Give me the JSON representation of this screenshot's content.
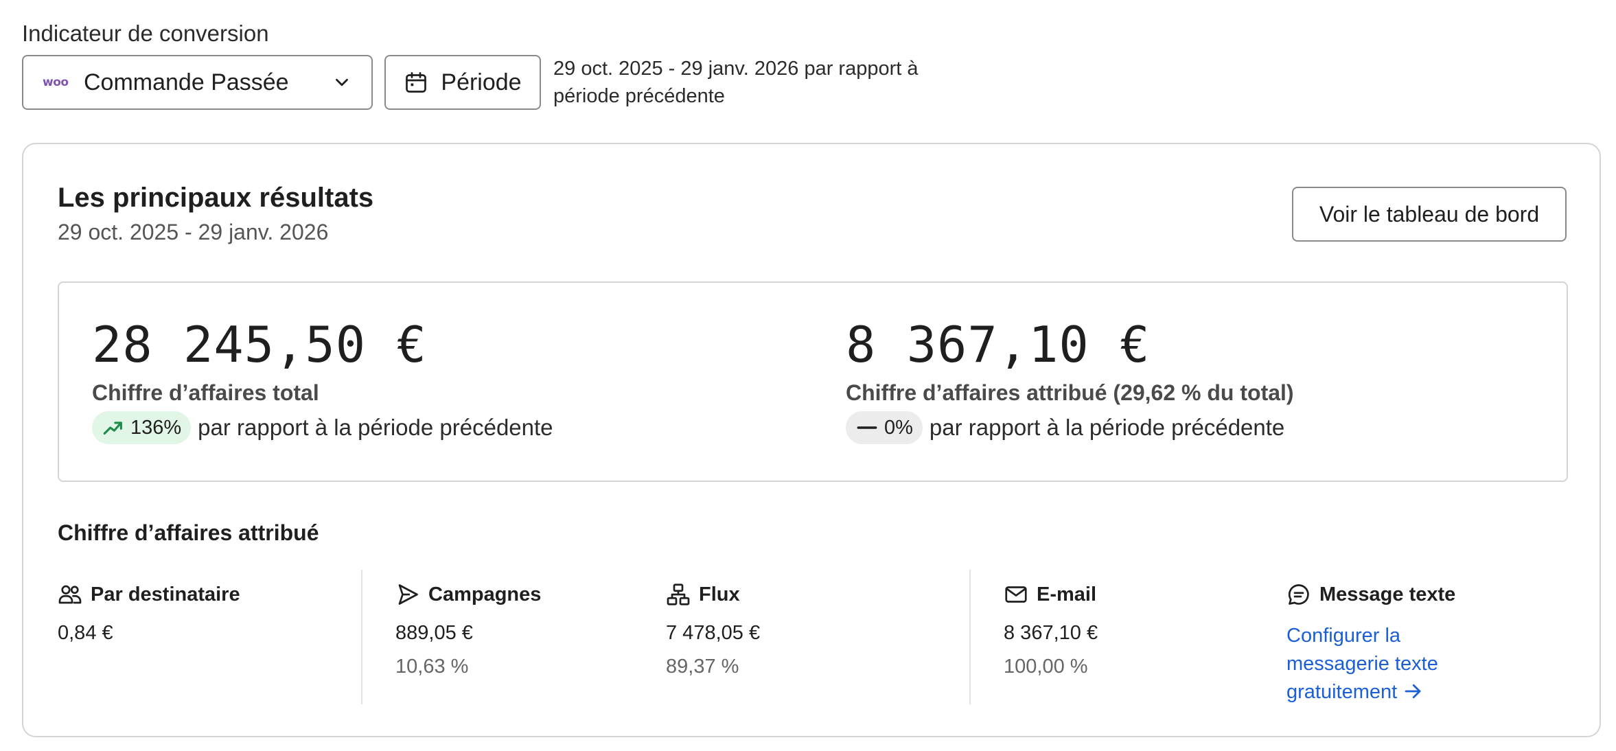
{
  "filters": {
    "metric_label": "Indicateur de conversion",
    "metric_logo_text": "woo",
    "metric_value": "Commande Passée",
    "period_label": "Période",
    "period_description": "29 oct. 2025 - 29 janv. 2026 par rapport à période précédente"
  },
  "card": {
    "title": "Les principaux résultats",
    "subtitle": "29 oct. 2025 - 29 janv. 2026",
    "dashboard_button": "Voir le tableau de bord"
  },
  "kpis": {
    "total": {
      "value": "28 245,50 €",
      "label": "Chiffre d’affaires total",
      "change": "136%",
      "change_direction": "up",
      "compare_text": "par rapport à la période précédente"
    },
    "attributed": {
      "value": "8 367,10 €",
      "label": "Chiffre d’affaires attribué (29,62 % du total)",
      "change": "0%",
      "change_direction": "flat",
      "compare_text": "par rapport à la période précédente"
    }
  },
  "breakdown": {
    "title": "Chiffre d’affaires attribué",
    "per_recipient": {
      "label": "Par destinataire",
      "value": "0,84 €"
    },
    "campaigns": {
      "label": "Campagnes",
      "value": "889,05 €",
      "percent": "10,63 %"
    },
    "flows": {
      "label": "Flux",
      "value": "7 478,05 €",
      "percent": "89,37 %"
    },
    "email": {
      "label": "E-mail",
      "value": "8 367,10 €",
      "percent": "100,00 %"
    },
    "sms": {
      "label": "Message texte",
      "link": "Configurer la messagerie texte gratuitement"
    }
  },
  "colors": {
    "link": "#1a5fd6",
    "badge_up_bg": "#e2f6e7",
    "trend_up": "#1e8a4c",
    "badge_flat_bg": "#ececec",
    "woo_brand": "#7f54b3"
  },
  "icons": {
    "metric_logo": "woo-logo-icon",
    "metric_chevron": "chevron-down-icon",
    "period": "calendar-icon",
    "change_up": "trend-up-icon",
    "change_flat": "dash-icon",
    "per_recipient": "users-icon",
    "campaigns": "send-icon",
    "flows": "flow-icon",
    "email": "mail-icon",
    "sms": "chat-icon",
    "sms_link": "arrow-right-icon"
  }
}
